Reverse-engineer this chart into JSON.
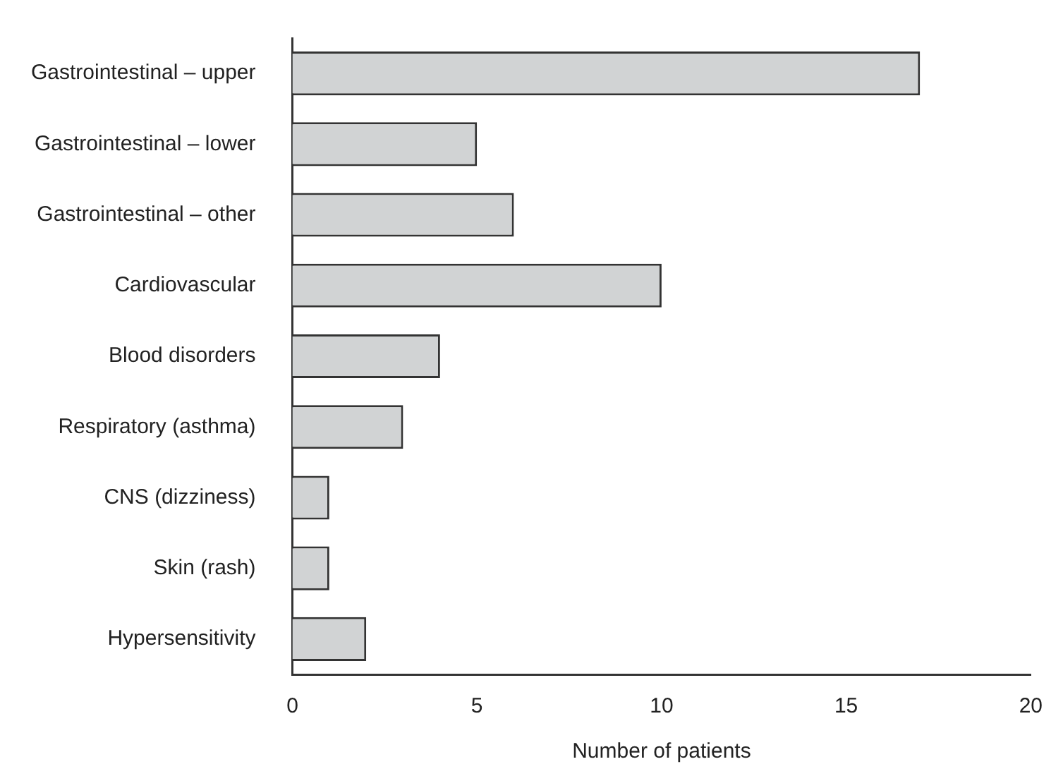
{
  "chart_data": {
    "type": "bar",
    "orientation": "horizontal",
    "xlabel": "Number of patients",
    "categories": [
      "Gastrointestinal – upper",
      "Gastrointestinal – lower",
      "Gastrointestinal – other",
      "Cardiovascular",
      "Blood disorders",
      "Respiratory (asthma)",
      "CNS (dizziness)",
      "Skin (rash)",
      "Hypersensitivity"
    ],
    "values": [
      17,
      5,
      6,
      10,
      4,
      3,
      1,
      1,
      2
    ],
    "color": "#d1d3d4",
    "xlim": [
      0,
      20
    ],
    "xticks": [
      0,
      5,
      10,
      15,
      20
    ],
    "grid": false,
    "legend": false
  }
}
